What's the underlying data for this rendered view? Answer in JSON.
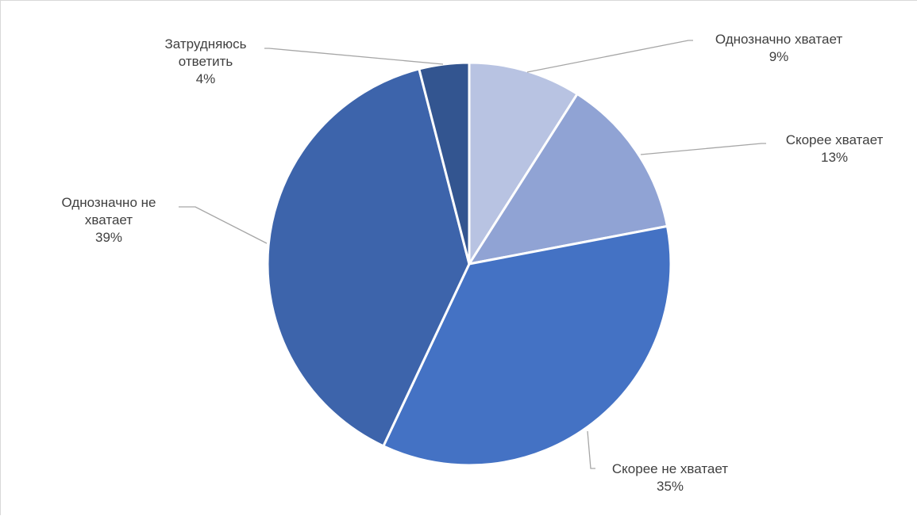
{
  "chart_data": {
    "type": "pie",
    "title": "",
    "legend": "none",
    "slices": [
      {
        "label_lines": [
          "Однозначно хватает"
        ],
        "label": "Однозначно хватает",
        "value": 9,
        "value_label": "9%",
        "color": "#b8c3e2"
      },
      {
        "label_lines": [
          "Скорее хватает"
        ],
        "label": "Скорее хватает",
        "value": 13,
        "value_label": "13%",
        "color": "#90a3d4"
      },
      {
        "label_lines": [
          "Скорее не хватает"
        ],
        "label": "Скорее не хватает",
        "value": 35,
        "value_label": "35%",
        "color": "#4472c4"
      },
      {
        "label_lines": [
          "Однозначно не",
          "хватает"
        ],
        "label": "Однозначно не хватает",
        "value": 39,
        "value_label": "39%",
        "color": "#3d64ab"
      },
      {
        "label_lines": [
          "Затрудняюсь",
          "ответить"
        ],
        "label": "Затрудняюсь ответить",
        "value": 4,
        "value_label": "4%",
        "color": "#335590"
      }
    ]
  }
}
